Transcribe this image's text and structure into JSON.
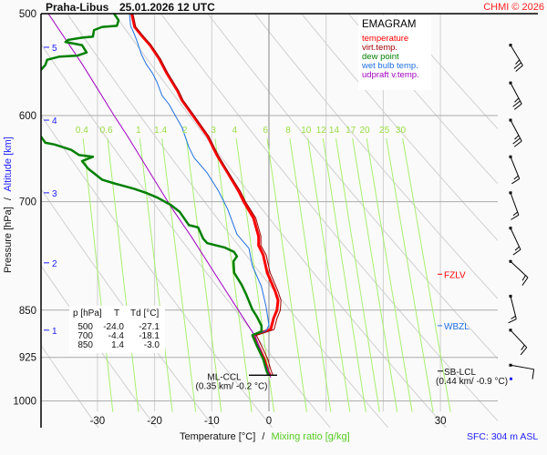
{
  "header": {
    "station": "Praha-Libus",
    "datetime": "25.01.2026 12 UTC",
    "copyright": "CHMI © 2026"
  },
  "legend": {
    "title": "EMAGRAM",
    "items": [
      {
        "label": "temperature",
        "color": "#ff0000"
      },
      {
        "label": "virt.temp.",
        "color": "#a00000"
      },
      {
        "label": "dew point",
        "color": "#008000"
      },
      {
        "label": "wet bulb temp.",
        "color": "#1e6fe0"
      },
      {
        "label": "udpraft v.temp.",
        "color": "#a000c0"
      }
    ]
  },
  "table": {
    "headers": [
      "p [hPa]",
      "T",
      "Td [°C]"
    ],
    "rows": [
      [
        "500",
        "-24.0",
        "-27.1"
      ],
      [
        "700",
        "-4.4",
        "-18.1"
      ],
      [
        "850",
        "1.4",
        "-3.0"
      ]
    ]
  },
  "axes": {
    "ylabel_pressure": "Pressure [hPa]",
    "ylabel_sep": "/",
    "ylabel_altitude": "Altitude [km]",
    "xlabel_temperature": "Temperature [°C]",
    "xlabel_sep": "/",
    "xlabel_mixing": "Mixing ratio [g/kg]"
  },
  "levels": {
    "fzlv": {
      "label": "FZLV",
      "p": 797,
      "color": "#ff0000"
    },
    "wbzl": {
      "label": "WBZL",
      "p": 874,
      "color": "#1e6fe0"
    },
    "sb_lcl": {
      "label": "SB-LCL",
      "detail": "(0.44 km/ -0.9 °C)",
      "p": 948
    },
    "ml_ccl": {
      "label": "ML-CCL",
      "detail": "(0.35 km/ -0.2 °C)",
      "p": 955
    }
  },
  "footer": {
    "sfc": "SFC: 304 m ASL"
  },
  "chart_data": {
    "type": "line",
    "title": "EMAGRAM",
    "xlabel": "Temperature [°C]",
    "ylabel": "Pressure [hPa]",
    "xlim": [
      -40,
      40
    ],
    "ylim": [
      1050,
      500
    ],
    "y_scale": "log",
    "x_ticks": [
      -30,
      -20,
      -10,
      0,
      10,
      20,
      30
    ],
    "x_tick_labels": [
      "-30",
      "-20",
      "-10",
      "0",
      "",
      "",
      "30"
    ],
    "y_ticks": [
      500,
      600,
      700,
      850,
      925,
      1000
    ],
    "grid": true,
    "altitude_ticks_km": [
      {
        "km": "5",
        "p": 531
      },
      {
        "km": "4",
        "p": 605
      },
      {
        "km": "3",
        "p": 689
      },
      {
        "km": "2",
        "p": 781
      },
      {
        "km": "1",
        "p": 881
      }
    ],
    "mixing_ratio_lines": [
      "0.4",
      "0.6",
      "1",
      "1.4",
      "2",
      "3",
      "4",
      "6",
      "8",
      "10",
      "12",
      "14",
      "17",
      "20",
      "25",
      "30"
    ],
    "dry_adiabats_theta_K": [
      240,
      250,
      260,
      270,
      280,
      290,
      300,
      310,
      320,
      330,
      340,
      350,
      360
    ],
    "series": [
      {
        "name": "temperature",
        "color": "#ff0000",
        "width": 3,
        "points": [
          [
            500,
            -24.0
          ],
          [
            512,
            -23.5
          ],
          [
            521,
            -22.1
          ],
          [
            529,
            -20.8
          ],
          [
            542,
            -19.2
          ],
          [
            556,
            -17.9
          ],
          [
            574,
            -16.0
          ],
          [
            584,
            -15.2
          ],
          [
            600,
            -13.3
          ],
          [
            623,
            -10.7
          ],
          [
            644,
            -9.1
          ],
          [
            665,
            -7.2
          ],
          [
            687,
            -5.3
          ],
          [
            700,
            -4.4
          ],
          [
            721,
            -2.7
          ],
          [
            745,
            -1.8
          ],
          [
            757,
            -1.8
          ],
          [
            770,
            -1.0
          ],
          [
            795,
            -0.3
          ],
          [
            822,
            1.1
          ],
          [
            835,
            1.6
          ],
          [
            850,
            1.4
          ],
          [
            863,
            0.8
          ],
          [
            880,
            0.3
          ],
          [
            889,
            -2.7
          ],
          [
            906,
            -1.9
          ],
          [
            928,
            -0.8
          ],
          [
            948,
            -0.2
          ],
          [
            955,
            0.2
          ]
        ]
      },
      {
        "name": "virt.temp.",
        "color": "#a00000",
        "width": 1,
        "points": [
          [
            500,
            -23.8
          ],
          [
            512,
            -23.3
          ],
          [
            521,
            -21.9
          ],
          [
            529,
            -20.6
          ],
          [
            542,
            -19.0
          ],
          [
            556,
            -17.7
          ],
          [
            574,
            -15.8
          ],
          [
            584,
            -15.0
          ],
          [
            600,
            -13.1
          ],
          [
            623,
            -10.5
          ],
          [
            644,
            -8.9
          ],
          [
            665,
            -7.0
          ],
          [
            687,
            -5.0
          ],
          [
            700,
            -4.1
          ],
          [
            721,
            -2.3
          ],
          [
            745,
            -1.4
          ],
          [
            757,
            -1.4
          ],
          [
            770,
            -0.5
          ],
          [
            795,
            0.2
          ],
          [
            822,
            1.6
          ],
          [
            835,
            2.1
          ],
          [
            850,
            2.0
          ],
          [
            863,
            1.4
          ],
          [
            880,
            0.9
          ],
          [
            889,
            -2.2
          ],
          [
            906,
            -1.3
          ],
          [
            928,
            -0.2
          ],
          [
            948,
            0.4
          ],
          [
            955,
            0.7
          ]
        ]
      },
      {
        "name": "dew point",
        "color": "#008000",
        "width": 2.5,
        "points": [
          [
            500,
            -27.1
          ],
          [
            506,
            -26.3
          ],
          [
            511,
            -26.6
          ],
          [
            512,
            -29.2
          ],
          [
            515,
            -30.6
          ],
          [
            521,
            -30.8
          ],
          [
            522,
            -32.7
          ],
          [
            524,
            -35.1
          ],
          [
            526,
            -35.6
          ],
          [
            529,
            -32.7
          ],
          [
            536,
            -31.9
          ],
          [
            539,
            -33.5
          ],
          [
            540,
            -36.7
          ],
          [
            543,
            -38.8
          ],
          [
            548,
            -39.1
          ],
          [
            553,
            -39.9
          ],
          null,
          [
            623,
            -39.9
          ],
          [
            630,
            -39.1
          ],
          [
            632,
            -37.5
          ],
          [
            638,
            -34.6
          ],
          [
            644,
            -33.2
          ],
          [
            646,
            -30.8
          ],
          [
            651,
            -32.7
          ],
          [
            660,
            -31.6
          ],
          [
            673,
            -29.2
          ],
          [
            678,
            -26.8
          ],
          [
            684,
            -23.6
          ],
          [
            689,
            -21.5
          ],
          [
            695,
            -19.5
          ],
          [
            704,
            -17.2
          ],
          [
            713,
            -15.6
          ],
          [
            730,
            -14.0
          ],
          [
            733,
            -12.4
          ],
          [
            748,
            -11.5
          ],
          [
            754,
            -10.8
          ],
          [
            760,
            -7.7
          ],
          [
            766,
            -6.1
          ],
          [
            772,
            -5.6
          ],
          [
            779,
            -6.2
          ],
          [
            795,
            -6.1
          ],
          [
            812,
            -4.8
          ],
          [
            826,
            -4.0
          ],
          [
            849,
            -2.9
          ],
          [
            860,
            -2.1
          ],
          [
            874,
            -1.3
          ],
          [
            883,
            -1.3
          ],
          [
            889,
            -2.9
          ],
          [
            906,
            -2.1
          ],
          [
            928,
            -1.0
          ],
          [
            948,
            -0.4
          ],
          [
            955,
            -0.1
          ]
        ]
      },
      {
        "name": "wet bulb temp.",
        "color": "#1e6fe0",
        "width": 1,
        "points": [
          [
            500,
            -24.4
          ],
          [
            511,
            -24.2
          ],
          [
            518,
            -23.6
          ],
          [
            525,
            -23.1
          ],
          [
            538,
            -22.3
          ],
          [
            547,
            -21.5
          ],
          [
            556,
            -20.4
          ],
          [
            565,
            -19.6
          ],
          [
            579,
            -18.7
          ],
          [
            588,
            -17.5
          ],
          [
            600,
            -16.4
          ],
          [
            613,
            -15.2
          ],
          [
            635,
            -14.0
          ],
          [
            647,
            -13.1
          ],
          [
            665,
            -10.8
          ],
          [
            687,
            -8.8
          ],
          [
            710,
            -7.2
          ],
          [
            742,
            -5.6
          ],
          [
            761,
            -3.5
          ],
          [
            785,
            -2.9
          ],
          [
            815,
            -1.3
          ],
          [
            845,
            -0.5
          ],
          [
            873,
            0.0
          ],
          [
            882,
            -0.5
          ],
          [
            889,
            -2.8
          ],
          [
            906,
            -2.0
          ],
          [
            928,
            -0.9
          ],
          [
            948,
            -0.3
          ]
        ]
      },
      {
        "name": "udpraft v.temp.",
        "color": "#a000c0",
        "width": 1,
        "points": [
          [
            500,
            -38.6
          ],
          [
            547,
            -32.7
          ],
          [
            600,
            -27.1
          ],
          [
            623,
            -24.7
          ],
          [
            706,
            -17.2
          ],
          [
            745,
            -13.6
          ],
          [
            815,
            -8.0
          ],
          [
            891,
            -2.4
          ],
          [
            959,
            0.3
          ]
        ]
      }
    ],
    "wind_barbs": [
      {
        "p": 529,
        "dir": 149,
        "kt": 25
      },
      {
        "p": 566,
        "dir": 152,
        "kt": 25
      },
      {
        "p": 605,
        "dir": 152,
        "kt": 25
      },
      {
        "p": 646,
        "dir": 158,
        "kt": 15
      },
      {
        "p": 689,
        "dir": 160,
        "kt": 15
      },
      {
        "p": 734,
        "dir": 155,
        "kt": 15
      },
      {
        "p": 779,
        "dir": 133,
        "kt": 15
      },
      {
        "p": 829,
        "dir": 166,
        "kt": 15
      },
      {
        "p": 881,
        "dir": 137,
        "kt": 15
      },
      {
        "p": 938,
        "dir": 100,
        "kt": 10
      }
    ]
  }
}
